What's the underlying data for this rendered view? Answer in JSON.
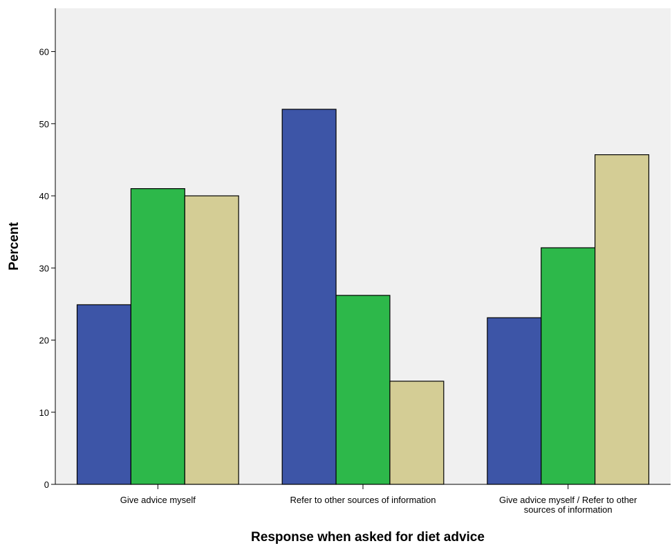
{
  "chart_data": {
    "type": "bar",
    "title": "",
    "xlabel": "Response when asked for diet advice",
    "ylabel": "Percent",
    "ylim": [
      0,
      66
    ],
    "yticks": [
      0,
      10,
      20,
      30,
      40,
      50,
      60
    ],
    "grid": false,
    "categories": [
      [
        "Give advice myself"
      ],
      [
        "Refer to other sources of information"
      ],
      [
        "Give advice myself / Refer to other",
        "sources of information"
      ]
    ],
    "series": [
      {
        "color": "#3d55a7",
        "values": [
          24.9,
          52.0,
          23.1
        ]
      },
      {
        "color": "#2db84a",
        "values": [
          41.0,
          26.2,
          32.8
        ]
      },
      {
        "color": "#d4cd95",
        "values": [
          40.0,
          14.3,
          45.7
        ]
      }
    ]
  },
  "colors": {
    "plot_background": "#f0f0f0",
    "axis": "#000000"
  }
}
